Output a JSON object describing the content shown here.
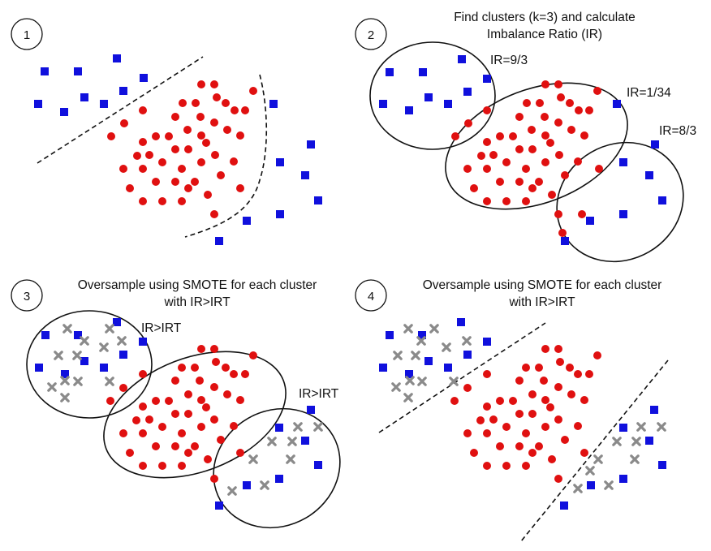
{
  "colors": {
    "majority": "#1010dd",
    "minority": "#e01010",
    "synthetic": "#8a8a8a",
    "outline": "#111111",
    "background": "#ffffff"
  },
  "shapes": {
    "majority": "blue-square",
    "minority": "red-circle",
    "synthetic": "gray-cross"
  },
  "panels": [
    {
      "step": "1",
      "title_lines": [],
      "cluster_labels": []
    },
    {
      "step": "2",
      "title_lines": [
        "Find clusters (k=3) and calculate",
        "Imbalance Ratio (IR)"
      ],
      "cluster_labels": [
        "IR=9/3",
        "IR=1/34",
        "IR=8/3"
      ]
    },
    {
      "step": "3",
      "title_lines": [
        "Oversample using SMOTE for each cluster",
        "with IR>IRT"
      ],
      "cluster_labels": [
        "IR>IRT",
        "IR>IRT"
      ]
    },
    {
      "step": "4",
      "title_lines": [
        "Oversample using SMOTE for each cluster",
        "with IR>IRT"
      ],
      "cluster_labels": []
    }
  ]
}
